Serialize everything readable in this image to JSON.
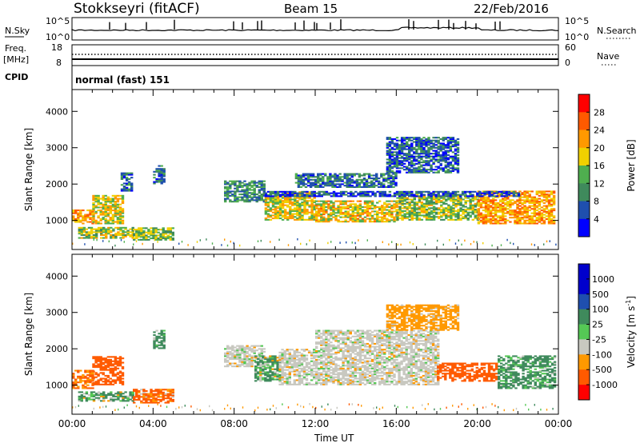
{
  "header": {
    "station": "Stokkseyri (fitACF)",
    "beam": "Beam 15",
    "date": "22/Feb/2016"
  },
  "side_labels": {
    "nsky": "N.Sky",
    "freq1": "Freq.",
    "freq2": "[MHz]",
    "cpid": "CPID",
    "nsearch": "N.Search",
    "nave": "Nave"
  },
  "strip_ticks": {
    "nsky_top": "10^5",
    "nsky_bottom": "10^0",
    "nsearch_top": "10^5",
    "nsearch_bottom": "10^0",
    "freq_top": "18",
    "freq_bottom": "8",
    "nave_top": "60",
    "nave_bottom": "0"
  },
  "cpid_text": "normal (fast) 151",
  "colors": {
    "power": [
      "#0000ff",
      "#1f4fae",
      "#3f8a5c",
      "#4fae4f",
      "#f0d000",
      "#ff9900",
      "#ff5a00",
      "#ff0000"
    ],
    "velocity": [
      "#0000cc",
      "#1f4fae",
      "#3f8a5c",
      "#55c855",
      "#c8c8c0",
      "#ff9900",
      "#ff5a00",
      "#ff0000"
    ]
  },
  "chart_data": [
    {
      "type": "heatmap",
      "title": "",
      "ylabel": "Slant Range [km]",
      "y_ticks": [
        "1000",
        "2000",
        "3000",
        "4000"
      ],
      "ylim": [
        200,
        4600
      ],
      "x_ticks": [
        "00:00",
        "04:00",
        "08:00",
        "12:00",
        "16:00",
        "20:00",
        "00:00"
      ],
      "xlim_hours": [
        0,
        24
      ],
      "colorbar_label": "Power [dB]",
      "colorbar_ticks": [
        "28",
        "24",
        "20",
        "16",
        "12",
        "8",
        "4"
      ],
      "colorbar_range": [
        0,
        32
      ],
      "regions": [
        {
          "t0": 0.0,
          "t1": 1.0,
          "r0": 900,
          "r1": 1300,
          "value": 22
        },
        {
          "t0": 1.0,
          "t1": 2.5,
          "r0": 900,
          "r1": 1700,
          "value": 18
        },
        {
          "t0": 0.3,
          "t1": 3.0,
          "r0": 500,
          "r1": 800,
          "value": 16
        },
        {
          "t0": 3.0,
          "t1": 5.0,
          "r0": 450,
          "r1": 800,
          "value": 14
        },
        {
          "t0": 4.0,
          "t1": 4.6,
          "r0": 2000,
          "r1": 2500,
          "value": 9
        },
        {
          "t0": 2.4,
          "t1": 3.0,
          "r0": 1800,
          "r1": 2300,
          "value": 8
        },
        {
          "t0": 7.5,
          "t1": 9.5,
          "r0": 1500,
          "r1": 2100,
          "value": 10
        },
        {
          "t0": 9.5,
          "t1": 12.0,
          "r0": 1000,
          "r1": 1800,
          "value": 18
        },
        {
          "t0": 12.0,
          "t1": 16.0,
          "r0": 950,
          "r1": 1550,
          "value": 19
        },
        {
          "t0": 16.0,
          "t1": 20.0,
          "r0": 1000,
          "r1": 1700,
          "value": 15
        },
        {
          "t0": 20.0,
          "t1": 23.8,
          "r0": 900,
          "r1": 1800,
          "value": 22
        },
        {
          "t0": 11.0,
          "t1": 16.0,
          "r0": 1900,
          "r1": 2300,
          "value": 8
        },
        {
          "t0": 15.5,
          "t1": 19.0,
          "r0": 2300,
          "r1": 3300,
          "value": 7
        },
        {
          "t0": 9.5,
          "t1": 22.0,
          "r0": 1650,
          "r1": 1800,
          "value": 6
        }
      ]
    },
    {
      "type": "heatmap",
      "title": "",
      "ylabel": "Slant Range [km]",
      "y_ticks": [
        "1000",
        "2000",
        "3000",
        "4000"
      ],
      "ylim": [
        200,
        4600
      ],
      "x_ticks": [
        "00:00",
        "04:00",
        "08:00",
        "12:00",
        "16:00",
        "20:00",
        "00:00"
      ],
      "xlabel": "Time UT",
      "xlim_hours": [
        0,
        24
      ],
      "colorbar_label": "Velocity [m s^-1]",
      "colorbar_ticks": [
        "1000",
        "500",
        "100",
        "25",
        "-25",
        "-100",
        "-500",
        "-1000"
      ],
      "regions": [
        {
          "t0": 0.0,
          "t1": 1.0,
          "r0": 900,
          "r1": 1400,
          "value": -100
        },
        {
          "t0": 1.0,
          "t1": 2.5,
          "r0": 1000,
          "r1": 1800,
          "value": -300
        },
        {
          "t0": 0.3,
          "t1": 3.0,
          "r0": 550,
          "r1": 800,
          "value": 150
        },
        {
          "t0": 3.0,
          "t1": 5.0,
          "r0": 500,
          "r1": 900,
          "value": -200
        },
        {
          "t0": 4.0,
          "t1": 4.6,
          "r0": 2000,
          "r1": 2500,
          "value": 200
        },
        {
          "t0": 7.5,
          "t1": 9.5,
          "r0": 1500,
          "r1": 2100,
          "value": 0
        },
        {
          "t0": 9.0,
          "t1": 10.2,
          "r0": 1100,
          "r1": 1800,
          "value": 150
        },
        {
          "t0": 10.2,
          "t1": 18.0,
          "r0": 1000,
          "r1": 2000,
          "value": 0
        },
        {
          "t0": 12.0,
          "t1": 18.0,
          "r0": 2000,
          "r1": 2500,
          "value": 0
        },
        {
          "t0": 18.0,
          "t1": 21.0,
          "r0": 1100,
          "r1": 1600,
          "value": -300
        },
        {
          "t0": 21.0,
          "t1": 23.8,
          "r0": 900,
          "r1": 1800,
          "value": 200
        },
        {
          "t0": 15.5,
          "t1": 19.0,
          "r0": 2500,
          "r1": 3200,
          "value": -50
        }
      ]
    }
  ]
}
